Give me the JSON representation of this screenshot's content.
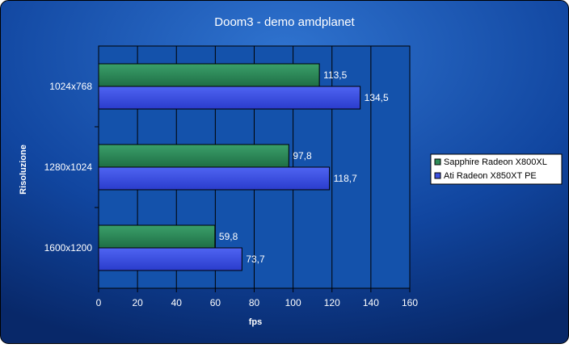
{
  "chart_data": {
    "type": "bar",
    "orientation": "horizontal",
    "title": "Doom3 - demo amdplanet",
    "xlabel": "fps",
    "ylabel": "Risoluzione",
    "xlim": [
      0,
      160
    ],
    "xticks": [
      "0",
      "20",
      "40",
      "60",
      "80",
      "100",
      "120",
      "140",
      "160"
    ],
    "grid": true,
    "legend_position": "right",
    "categories": [
      "1024x768",
      "1280x1024",
      "1600x1200"
    ],
    "series": [
      {
        "name": "Sapphire Radeon X800XL",
        "color": "#2e8b57",
        "values": [
          113.5,
          97.8,
          59.8
        ],
        "labels": [
          "113,5",
          "97,8",
          "59,8"
        ]
      },
      {
        "name": "Ati Radeon X850XT PE",
        "color": "#3b4fe0",
        "values": [
          134.5,
          118.7,
          73.7
        ],
        "labels": [
          "134,5",
          "118,7",
          "73,7"
        ]
      }
    ]
  },
  "colors": {
    "background_dark": "#0a2a6b",
    "background_light": "#2e6cc6",
    "plot_area": "#0f4ea7",
    "text": "#ffffff"
  }
}
